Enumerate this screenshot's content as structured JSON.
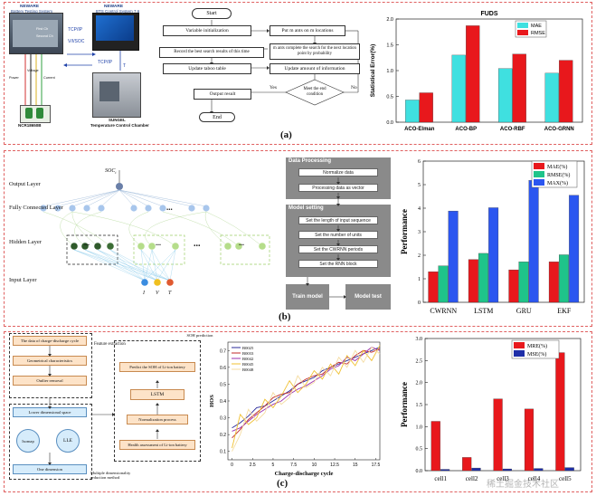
{
  "panels": {
    "a": {
      "label": "(a)"
    },
    "b": {
      "label": "(b)"
    },
    "c": {
      "label": "(c)"
    }
  },
  "hardware": {
    "tester_title": "NEWARE",
    "tester_sub": "Battery Testing System",
    "control_title": "NEWARE",
    "control_sub": "BTS Control System 7.6",
    "chamber_title": "SUNGEL",
    "chamber_sub": "Temperature Control Chamber",
    "battery_title": "NCR18650B",
    "link1": "TCP/IP",
    "link2": "V/I/SOC",
    "link3": "TCP/IP",
    "link4": "T",
    "wire_power": "Power",
    "wire_voltage": "Voltage",
    "wire_current": "Current",
    "first_ch": "First Ch",
    "second_ch": "Second Ch"
  },
  "flowchart": {
    "start": "Start",
    "init": "Variable initialization",
    "put_ants": "Put  m ants on m locations",
    "record": "Record the best search results of this time",
    "search": "m ants complete the search for the next location point by probability",
    "tabu": "Update taboo table",
    "info": "Update amount of information",
    "condition": "Meet the end condition",
    "yes": "Yes",
    "no": "No",
    "output": "Output result",
    "end": "End"
  },
  "chart_a": {
    "type": "bar",
    "title": "FUDS",
    "ylabel": "Statistical Error(%)",
    "categories": [
      "ACO-Elman",
      "ACO-BP",
      "ACO-RBF",
      "ACO-GRNN"
    ],
    "series": [
      {
        "name": "MAE",
        "color": "#3fe0e0",
        "values": [
          0.43,
          1.3,
          1.04,
          0.95
        ]
      },
      {
        "name": "RMSE",
        "color": "#e8181c",
        "values": [
          0.57,
          1.87,
          1.32,
          1.2
        ]
      }
    ],
    "ylim": [
      0,
      2.0
    ],
    "yticks": [
      "0.0",
      "0.5",
      "1.0",
      "1.5",
      "2.0"
    ]
  },
  "network": {
    "output_layer": "Output Layer",
    "fc_layer": "Fully Connected Layer",
    "hidden_layer": "Hidden Layer",
    "input_layer": "Input Layer",
    "soc": "SOC",
    "soc_sub": "t",
    "in1": "I",
    "in2": "V",
    "in3": "T",
    "dots": "..."
  },
  "process": {
    "data_title": "Data Processing",
    "normalize": "Normalize data",
    "vector": "Processing data as vector",
    "model_title": "Model setting",
    "len": "Set the length of input sequence",
    "units": "Set the number of units",
    "periods": "Set the CWRNN periods",
    "block": "Set the RNN block",
    "train": "Train model",
    "test": "Model test"
  },
  "chart_b": {
    "type": "bar",
    "ylabel": "Performance",
    "categories": [
      "CWRNN",
      "LSTM",
      "GRU",
      "EKF"
    ],
    "series": [
      {
        "name": "MAE(%)",
        "color": "#e8181c",
        "values": [
          1.3,
          1.82,
          1.38,
          1.72
        ]
      },
      {
        "name": "RMSE(%)",
        "color": "#1fc48a",
        "values": [
          1.55,
          2.08,
          1.72,
          2.02
        ]
      },
      {
        "name": "MAX(%)",
        "color": "#2b56f0",
        "values": [
          3.88,
          4.02,
          5.18,
          4.55
        ]
      }
    ],
    "ylim": [
      0,
      6
    ],
    "yticks": [
      "0",
      "1",
      "2",
      "3",
      "4",
      "5",
      "6"
    ]
  },
  "soh_flow": {
    "cycle_data": "The data of charge-discharge cycle",
    "feature_extraction": "Feature extraction",
    "geo": "Geometrical characteristics",
    "outlier": "Outlier removal",
    "lower": "Lower dimensional space",
    "isomap": "Isomap",
    "lle": "LLE",
    "one_dim": "One dimension",
    "multi": "Multiple dimensionality reduction method",
    "soh_pred": "SOH prediction",
    "predict": "Predict the SOH of Li-ion battery",
    "lstm": "LSTM",
    "norm": "Normalization process",
    "health": "Health assessment of Li-ion battery"
  },
  "chart_line": {
    "type": "line",
    "xlabel": "Charge-discharge cycle",
    "ylabel": "HOS",
    "xticks": [
      "0",
      "2.5",
      "5",
      "7.5",
      "10",
      "12.5",
      "15",
      "17.5"
    ],
    "yticks": [
      "0.1",
      "0.2",
      "0.3",
      "0.4",
      "0.5",
      "0.6",
      "0.7"
    ],
    "xlim": [
      -0.5,
      18
    ],
    "ylim": [
      0.05,
      0.75
    ],
    "series": [
      {
        "name": "B0025",
        "color": "#2a2a9a",
        "values": [
          0.24,
          0.27,
          0.31,
          0.36,
          0.37,
          0.4,
          0.43,
          0.46,
          0.5,
          0.52,
          0.54,
          0.58,
          0.6,
          0.62,
          0.64,
          0.66,
          0.68,
          0.7,
          0.72
        ]
      },
      {
        "name": "B0033",
        "color": "#c02a2a",
        "values": [
          0.18,
          0.23,
          0.29,
          0.33,
          0.37,
          0.42,
          0.44,
          0.45,
          0.5,
          0.53,
          0.55,
          0.56,
          0.6,
          0.63,
          0.62,
          0.67,
          0.7,
          0.69,
          0.71
        ]
      },
      {
        "name": "B0042",
        "color": "#9a30b0",
        "values": [
          0.22,
          0.24,
          0.28,
          0.32,
          0.35,
          0.38,
          0.4,
          0.44,
          0.47,
          0.49,
          0.52,
          0.55,
          0.59,
          0.61,
          0.66,
          0.64,
          0.68,
          0.72,
          0.7
        ]
      },
      {
        "name": "B0045",
        "color": "#f0c030",
        "values": [
          0.12,
          0.32,
          0.26,
          0.3,
          0.41,
          0.36,
          0.43,
          0.52,
          0.45,
          0.5,
          0.58,
          0.53,
          0.62,
          0.56,
          0.67,
          0.61,
          0.7,
          0.64,
          0.73
        ]
      },
      {
        "name": "B0048",
        "color": "#f5dca0",
        "values": [
          0.1,
          0.2,
          0.35,
          0.28,
          0.33,
          0.45,
          0.38,
          0.42,
          0.55,
          0.48,
          0.51,
          0.6,
          0.55,
          0.66,
          0.6,
          0.7,
          0.63,
          0.72,
          0.68
        ]
      }
    ]
  },
  "chart_c": {
    "type": "bar",
    "ylabel": "Performance",
    "categories": [
      "cell1",
      "cell2",
      "cell3",
      "cell4",
      "cell5"
    ],
    "series": [
      {
        "name": "MRE(%)",
        "color": "#e8181c",
        "values": [
          1.12,
          0.3,
          1.63,
          1.4,
          2.68
        ]
      },
      {
        "name": "MSE(%)",
        "color": "#1e2ea8",
        "values": [
          0.03,
          0.06,
          0.04,
          0.05,
          0.07
        ]
      }
    ],
    "ylim": [
      0,
      3.0
    ],
    "yticks": [
      "0.0",
      "0.5",
      "1.0",
      "1.5",
      "2.0",
      "2.5",
      "3.0"
    ]
  },
  "watermark": "稀土掘金技术社区"
}
